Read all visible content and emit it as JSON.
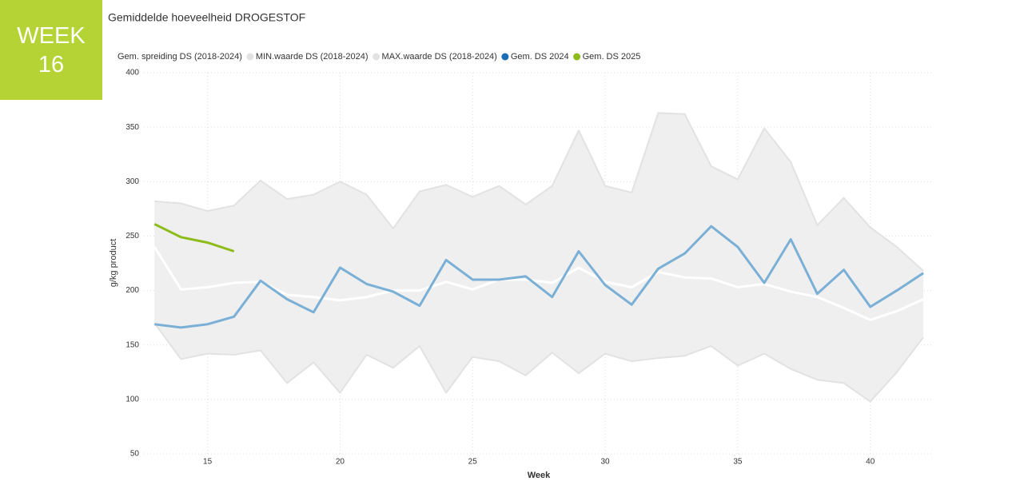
{
  "badge": {
    "text": "WEEK",
    "number": 16
  },
  "chart_data": {
    "type": "line",
    "title": "Gemiddelde hoeveelheid DROGESTOF",
    "x_label": "Week",
    "y_label": "g/kg product",
    "x": [
      13,
      14,
      15,
      16,
      17,
      18,
      19,
      20,
      21,
      22,
      23,
      24,
      25,
      26,
      27,
      28,
      29,
      30,
      31,
      32,
      33,
      34,
      35,
      36,
      37,
      38,
      39,
      40,
      41,
      42
    ],
    "xlim": [
      12.6,
      42.3
    ],
    "xticks": [
      15,
      20,
      25,
      30,
      35,
      40
    ],
    "ylim": [
      50,
      400
    ],
    "yticks": [
      50,
      100,
      150,
      200,
      250,
      300,
      350,
      400
    ],
    "grid": true,
    "legend": "top-left",
    "band": {
      "lower": 1,
      "upper": 2,
      "color": "#efefef"
    },
    "series": [
      {
        "name": "Gem. spreiding DS (2018-2024)",
        "color": "#ffffff",
        "values": [
          240,
          201,
          203,
          207,
          208,
          196,
          194,
          191,
          194,
          200,
          200,
          208,
          201,
          210,
          210,
          207,
          221,
          208,
          203,
          217,
          212,
          211,
          203,
          206,
          199,
          194,
          184,
          173,
          181,
          192
        ]
      },
      {
        "name": "MIN.waarde DS (2018-2024)",
        "color": "#e2e2e2",
        "values": [
          170,
          137,
          142,
          141,
          145,
          115,
          134,
          106,
          141,
          129,
          149,
          106,
          139,
          135,
          122,
          143,
          124,
          142,
          135,
          138,
          140,
          149,
          131,
          142,
          128,
          118,
          115,
          98,
          125,
          157
        ]
      },
      {
        "name": "MAX.waarde DS (2018-2024)",
        "color": "#e2e2e2",
        "values": [
          282,
          280,
          273,
          278,
          301,
          284,
          288,
          300,
          288,
          257,
          291,
          297,
          286,
          296,
          279,
          296,
          347,
          296,
          290,
          363,
          362,
          314,
          302,
          349,
          318,
          260,
          285,
          258,
          240,
          218
        ]
      },
      {
        "name": "Gem. DS 2024",
        "color": "#7aafd6",
        "values": [
          169,
          166,
          169,
          176,
          209,
          192,
          180,
          221,
          206,
          199,
          186,
          228,
          210,
          210,
          213,
          194,
          236,
          205,
          187,
          220,
          234,
          259,
          240,
          207,
          247,
          197,
          219,
          185,
          200,
          216
        ]
      },
      {
        "name": "Gem. DS 2025",
        "color": "#8dbb1a",
        "values": [
          261,
          249,
          244,
          236,
          null,
          null,
          null,
          null,
          null,
          null,
          null,
          null,
          null,
          null,
          null,
          null,
          null,
          null,
          null,
          null,
          null,
          null,
          null,
          null,
          null,
          null,
          null,
          null,
          null,
          null
        ]
      }
    ]
  }
}
